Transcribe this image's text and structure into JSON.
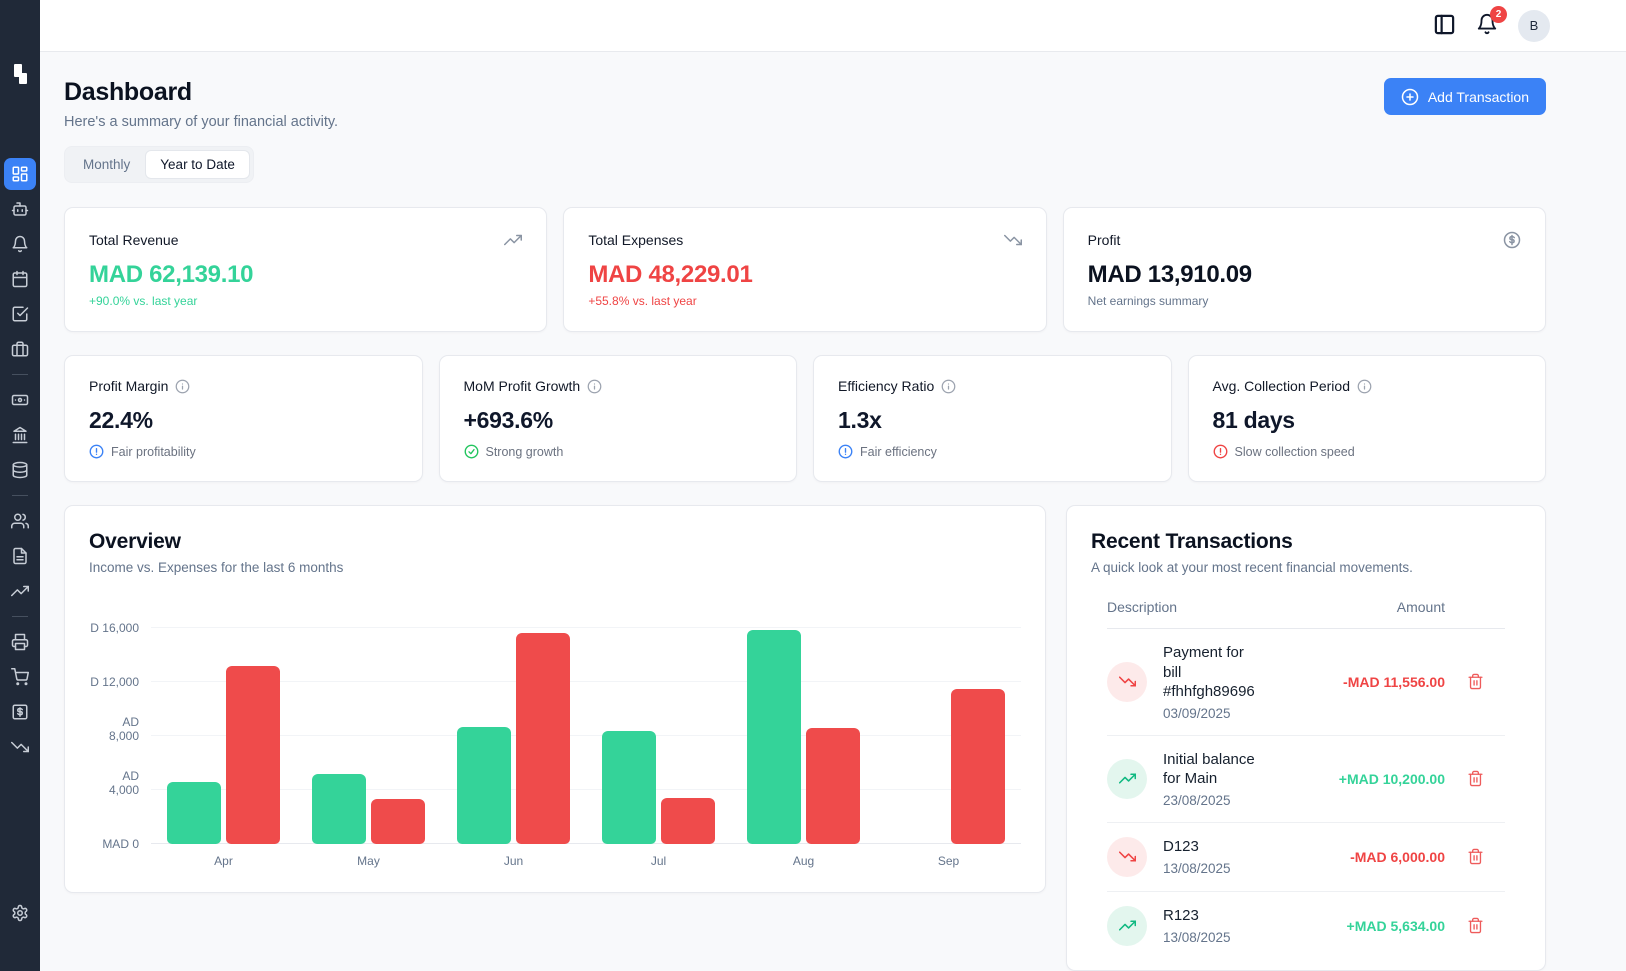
{
  "brand": {
    "logo_icon": "step-blocks-logo"
  },
  "header": {
    "panel_toggle_icon": "panel-left-icon",
    "bell_icon": "bell-icon",
    "notification_count": "2",
    "avatar_initial": "B"
  },
  "page": {
    "title": "Dashboard",
    "subtitle": "Here's a summary of your financial activity.",
    "add_transaction_label": "Add Transaction"
  },
  "tabs": [
    {
      "label": "Monthly",
      "active": false
    },
    {
      "label": "Year to Date",
      "active": true
    }
  ],
  "stat_cards": [
    {
      "label": "Total Revenue",
      "value": "MAD 62,139.10",
      "sub": "+90.0% vs. last year",
      "icon": "trending-up",
      "value_color": "#34d399",
      "sub_color": "#34d399"
    },
    {
      "label": "Total Expenses",
      "value": "MAD 48,229.01",
      "sub": "+55.8% vs. last year",
      "icon": "trending-down",
      "value_color": "#ef4444",
      "sub_color": "#ef4444"
    },
    {
      "label": "Profit",
      "value": "MAD 13,910.09",
      "sub": "Net earnings summary",
      "icon": "dollar-circle",
      "value_color": "#0b1220",
      "sub_color": "#64748b"
    }
  ],
  "metric_cards": [
    {
      "label": "Profit Margin",
      "value": "22.4%",
      "status": "Fair profitability",
      "status_icon": "alert-circle",
      "status_color": "#3b82f6"
    },
    {
      "label": "MoM Profit Growth",
      "value": "+693.6%",
      "status": "Strong growth",
      "status_icon": "check-circle",
      "status_color": "#22c55e"
    },
    {
      "label": "Efficiency Ratio",
      "value": "1.3x",
      "status": "Fair efficiency",
      "status_icon": "alert-circle",
      "status_color": "#3b82f6"
    },
    {
      "label": "Avg. Collection Period",
      "value": "81 days",
      "status": "Slow collection speed",
      "status_icon": "alert-circle",
      "status_color": "#ef4444"
    }
  ],
  "overview": {
    "title": "Overview",
    "subtitle": "Income vs. Expenses for the last 6 months"
  },
  "chart_data": {
    "type": "bar",
    "title": "Overview",
    "subtitle": "Income vs. Expenses for the last 6 months",
    "categories": [
      "Apr",
      "May",
      "Jun",
      "Jul",
      "Aug",
      "Sep"
    ],
    "series": [
      {
        "name": "Income",
        "color": "#34d399",
        "values": [
          4600,
          5200,
          8650,
          8350,
          15850,
          0
        ]
      },
      {
        "name": "Expenses",
        "color": "#ef4b4b",
        "values": [
          13200,
          3300,
          15650,
          3400,
          8600,
          11500
        ]
      }
    ],
    "ylim": [
      0,
      16000
    ],
    "y_ticks": [
      {
        "value": 0,
        "label": "MAD 0"
      },
      {
        "value": 4000,
        "label": "AD 4,000"
      },
      {
        "value": 8000,
        "label": "AD 8,000"
      },
      {
        "value": 12000,
        "label": "D 12,000"
      },
      {
        "value": 16000,
        "label": "D 16,000"
      }
    ],
    "grid": true,
    "legend": "none"
  },
  "transactions": {
    "title": "Recent Transactions",
    "subtitle": "A quick look at your most recent financial movements.",
    "columns": [
      "Description",
      "Amount"
    ],
    "rows": [
      {
        "description": "Payment for bill #fhhfgh89696",
        "date": "03/09/2025",
        "amount": "-MAD 11,556.00",
        "direction": "down",
        "amount_color": "#ef4444"
      },
      {
        "description": "Initial balance for Main",
        "date": "23/08/2025",
        "amount": "+MAD 10,200.00",
        "direction": "up",
        "amount_color": "#34d399"
      },
      {
        "description": "D123",
        "date": "13/08/2025",
        "amount": "-MAD 6,000.00",
        "direction": "down",
        "amount_color": "#ef4444"
      },
      {
        "description": "R123",
        "date": "13/08/2025",
        "amount": "+MAD 5,634.00",
        "direction": "up",
        "amount_color": "#34d399"
      }
    ],
    "row_icon_colors": {
      "down": {
        "bg": "#fdeaea",
        "fg": "#ef4444"
      },
      "up": {
        "bg": "#e3f6ee",
        "fg": "#10b981"
      }
    },
    "delete_icon": "trash-icon"
  },
  "sidebar": {
    "items": [
      {
        "type": "item",
        "name": "dashboard",
        "icon": "layout-dashboard",
        "active": true
      },
      {
        "type": "item",
        "name": "assistant",
        "icon": "bot",
        "active": false
      },
      {
        "type": "item",
        "name": "notifications",
        "icon": "bell",
        "active": false
      },
      {
        "type": "item",
        "name": "calendar",
        "icon": "calendar",
        "active": false
      },
      {
        "type": "item",
        "name": "tasks",
        "icon": "check-square",
        "active": false
      },
      {
        "type": "item",
        "name": "portfolio",
        "icon": "briefcase",
        "active": false
      },
      {
        "type": "divider"
      },
      {
        "type": "item",
        "name": "payments",
        "icon": "banknote",
        "active": false
      },
      {
        "type": "item",
        "name": "bank",
        "icon": "landmark",
        "active": false
      },
      {
        "type": "item",
        "name": "data",
        "icon": "database",
        "active": false
      },
      {
        "type": "divider"
      },
      {
        "type": "item",
        "name": "contacts",
        "icon": "users",
        "active": false
      },
      {
        "type": "item",
        "name": "documents",
        "icon": "file-text",
        "active": false
      },
      {
        "type": "item",
        "name": "income",
        "icon": "trending-up",
        "active": false
      },
      {
        "type": "divider"
      },
      {
        "type": "item",
        "name": "invoices",
        "icon": "printer",
        "active": false
      },
      {
        "type": "item",
        "name": "purchases",
        "icon": "shopping-cart",
        "active": false
      },
      {
        "type": "item",
        "name": "billing",
        "icon": "dollar-square",
        "active": false
      },
      {
        "type": "item",
        "name": "expenses",
        "icon": "trending-down",
        "active": false
      }
    ],
    "bottom_item": {
      "name": "settings",
      "icon": "settings"
    }
  },
  "colors": {
    "accent": "#3b82f6",
    "green": "#34d399",
    "red": "#ef4444",
    "sidebar_bg": "#202938",
    "content_bg": "#f8f9fb"
  }
}
